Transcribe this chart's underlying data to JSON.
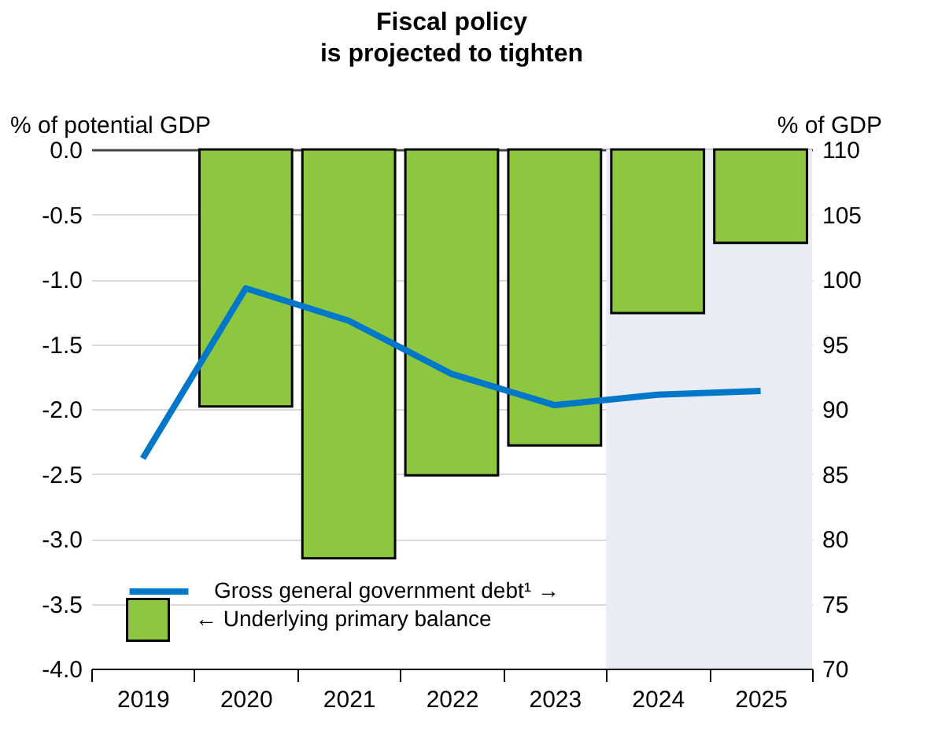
{
  "chart_data": {
    "type": "bar",
    "title": "Fiscal policy\nis projected to tighten",
    "ylabel": "% of potential GDP",
    "y2label": "% of GDP",
    "categories": [
      "2019",
      "2020",
      "2021",
      "2022",
      "2023",
      "2024",
      "2025"
    ],
    "series": [
      {
        "name": "Gross general government debt¹ →",
        "type": "line",
        "axis": "y2",
        "color": "#0077c8",
        "values": [
          86.2,
          99.3,
          96.8,
          92.7,
          90.3,
          91.1,
          91.4
        ]
      },
      {
        "name": "← Underlying primary balance",
        "color": "#8dc63f",
        "values": [
          null,
          -1.98,
          -3.15,
          -2.51,
          -2.28,
          -1.26,
          -0.72
        ]
      }
    ],
    "ylim": [
      -4,
      0
    ],
    "yticks": [
      {
        "value": -4,
        "label": "-4.0"
      },
      {
        "value": -3.5,
        "label": "-3.5"
      },
      {
        "value": -3,
        "label": "-3.0"
      },
      {
        "value": -2.5,
        "label": "-2.5"
      },
      {
        "value": -2,
        "label": "-2.0"
      },
      {
        "value": -1.5,
        "label": "-1.5"
      },
      {
        "value": -1,
        "label": "-1.0"
      },
      {
        "value": -0.5,
        "label": "-0.5"
      },
      {
        "value": 0,
        "label": "0.0"
      }
    ],
    "y2lim": [
      70,
      110
    ],
    "y2ticks": [
      70,
      75,
      80,
      85,
      90,
      95,
      100,
      105,
      110
    ],
    "bands": [
      {
        "axis": "x",
        "from": "2024",
        "to": "2025",
        "color": "#e9ecf5"
      }
    ],
    "grid": "y",
    "legend": "bottom left"
  }
}
